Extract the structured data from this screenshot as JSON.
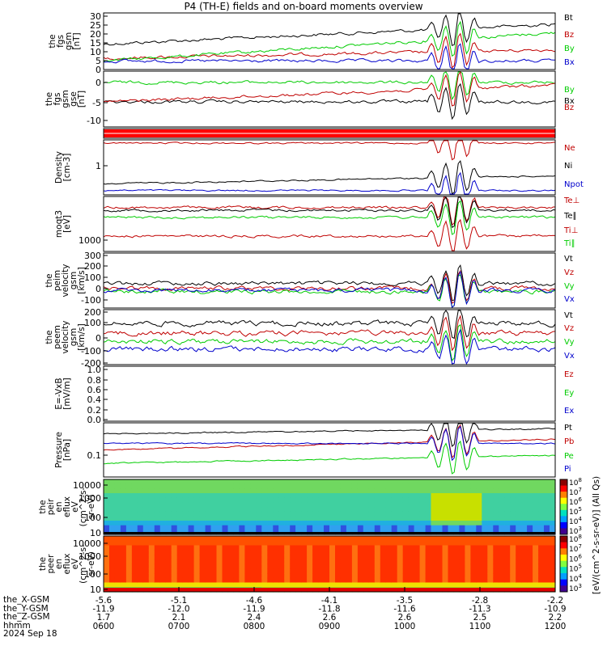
{
  "chart_data": {
    "type": "line",
    "title": "P4 (TH-E) fields and on-board moments overview",
    "panels": [
      {
        "id": "fgs_mag",
        "ylabel": [
          "the",
          "fgs",
          "gsm",
          "[nT]"
        ],
        "yticks": [
          "30",
          "25",
          "20",
          "15",
          "10",
          "5",
          "0"
        ],
        "ylim": [
          0,
          32
        ],
        "series": [
          {
            "name": "Bt",
            "color": "#000000"
          },
          {
            "name": "Bz",
            "color": "#c00000"
          },
          {
            "name": "By",
            "color": "#00cc00"
          },
          {
            "name": "Bx",
            "color": "#0000cc"
          }
        ]
      },
      {
        "id": "fgs_gse",
        "ylabel": [
          "the",
          "fgs",
          "gsm",
          "gse",
          "[nT]"
        ],
        "yticks": [
          "0",
          "-5",
          "-10"
        ],
        "ylim": [
          -14,
          2
        ],
        "series": [
          {
            "name": "By",
            "color": "#00cc00"
          },
          {
            "name": "Bx",
            "color": "#000000"
          },
          {
            "name": "Bz",
            "color": "#c00000"
          }
        ]
      },
      {
        "id": "flags",
        "ylabel": [],
        "yticks": [],
        "series": []
      },
      {
        "id": "density",
        "ylabel": [
          "Density",
          "[cm-3]"
        ],
        "yticks": [
          "1"
        ],
        "ylim": [
          0.15,
          4
        ],
        "series": [
          {
            "name": "Ne",
            "color": "#c00000"
          },
          {
            "name": "Ni",
            "color": "#000000"
          },
          {
            "name": "Npot",
            "color": "#0000cc"
          }
        ]
      },
      {
        "id": "temp",
        "ylabel": [
          "moqt3",
          "[eV]"
        ],
        "yticks": [
          "1000"
        ],
        "ylim": [
          500,
          30000
        ],
        "series": [
          {
            "name": "Te⊥",
            "color": "#c00000"
          },
          {
            "name": "Te∥",
            "color": "#000000"
          },
          {
            "name": "Ti⊥",
            "color": "#c00000"
          },
          {
            "name": "Ti∥",
            "color": "#00cc00"
          }
        ]
      },
      {
        "id": "peim_vel",
        "ylabel": [
          "the",
          "peim",
          "velocity",
          "gsm",
          "[km/s]"
        ],
        "yticks": [
          "300",
          "200",
          "100",
          "0",
          "-100"
        ],
        "ylim": [
          -150,
          320
        ],
        "series": [
          {
            "name": "Vt",
            "color": "#000000"
          },
          {
            "name": "Vz",
            "color": "#c00000"
          },
          {
            "name": "Vy",
            "color": "#00cc00"
          },
          {
            "name": "Vx",
            "color": "#0000cc"
          }
        ]
      },
      {
        "id": "peem_vel",
        "ylabel": [
          "the",
          "peem",
          "velocity",
          "gsm",
          "[km/s]"
        ],
        "yticks": [
          "200",
          "100",
          "0",
          "-100",
          "-200"
        ],
        "ylim": [
          -220,
          240
        ],
        "series": [
          {
            "name": "Vt",
            "color": "#000000"
          },
          {
            "name": "Vz",
            "color": "#c00000"
          },
          {
            "name": "Vy",
            "color": "#00cc00"
          },
          {
            "name": "Vx",
            "color": "#0000cc"
          }
        ]
      },
      {
        "id": "efield",
        "ylabel": [
          "E=-VxB",
          "[mV/m]"
        ],
        "yticks": [
          "1.0",
          "0.8",
          "0.6",
          "0.4",
          "0.2",
          "0.0"
        ],
        "ylim": [
          0,
          1
        ],
        "series": [
          {
            "name": "Ez",
            "color": "#c00000"
          },
          {
            "name": "Ey",
            "color": "#00cc00"
          },
          {
            "name": "Ex",
            "color": "#0000cc"
          }
        ]
      },
      {
        "id": "pressure",
        "ylabel": [
          "Pressure",
          "[nPa]"
        ],
        "yticks": [
          "0.1"
        ],
        "ylim": [
          0.05,
          0.6
        ],
        "series": [
          {
            "name": "Pt",
            "color": "#000000"
          },
          {
            "name": "Pb",
            "color": "#c00000"
          },
          {
            "name": "Pe",
            "color": "#00cc00"
          },
          {
            "name": "Pi",
            "color": "#0000cc"
          }
        ]
      },
      {
        "id": "peir_spec",
        "type": "heatmap",
        "ylabel": [
          "the",
          "peir",
          "en",
          "eflux",
          "eV",
          "(cm^2-s-",
          "sr-eV)"
        ],
        "yticks": [
          "10000",
          "1000",
          "100",
          "10"
        ]
      },
      {
        "id": "peer_spec",
        "type": "heatmap",
        "ylabel": [
          "the",
          "peer",
          "en",
          "eflux",
          "eV",
          "(cm^2-s-",
          "sr-eV)"
        ],
        "yticks": [
          "10000",
          "1000",
          "100",
          "10"
        ]
      }
    ],
    "colorbar": {
      "label": "[eV/(cm^2-s-sr-eV)] (All Qs)",
      "ticks_top": [
        "10^8",
        "10^7",
        "10^6",
        "10^5",
        "10^4",
        "10^3"
      ],
      "ticks_bottom": [
        "10^8",
        "10^7",
        "10^6",
        "10^5",
        "10^4",
        "10^3"
      ]
    },
    "x_axis": {
      "hhmm": [
        "0600",
        "0700",
        "0800",
        "0900",
        "1000",
        "1100",
        "1200"
      ],
      "x_gsm": [
        "-5.6",
        "-5.1",
        "-4.6",
        "-4.1",
        "-3.5",
        "-2.8",
        "-2.2"
      ],
      "y_gsm": [
        "-11.9",
        "-12.0",
        "-11.9",
        "-11.8",
        "-11.6",
        "-11.3",
        "-10.9"
      ],
      "z_gsm": [
        "1.7",
        "2.1",
        "2.4",
        "2.6",
        "2.6",
        "2.5",
        "2.2"
      ],
      "row_labels": [
        "the_X-GSM",
        "the_Y-GSM",
        "the_Z-GSM",
        "hhmm"
      ],
      "date": "2024 Sep 18"
    }
  }
}
